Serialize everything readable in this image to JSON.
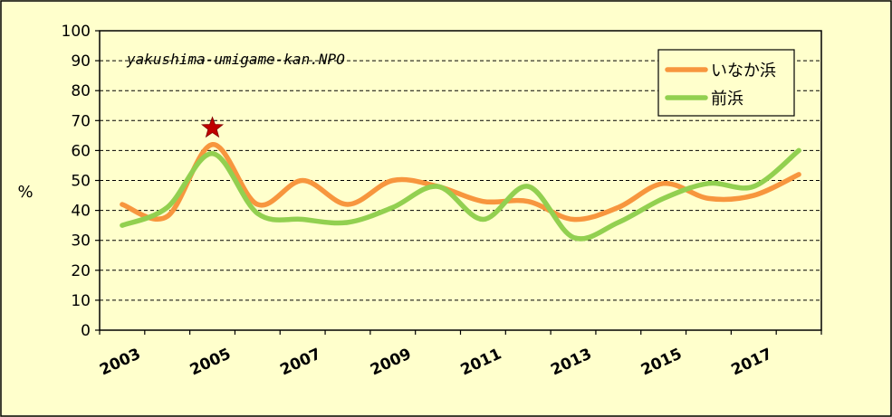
{
  "chart_data": {
    "type": "line",
    "ylabel": "%",
    "annotation": "yakushima-umigame-kan.NPO",
    "ylim": [
      0,
      100
    ],
    "yticks": [
      0,
      10,
      20,
      30,
      40,
      50,
      60,
      70,
      80,
      90,
      100
    ],
    "xlim": [
      2003,
      2018
    ],
    "xticks": [
      2003,
      2005,
      2007,
      2009,
      2011,
      2013,
      2015,
      2017
    ],
    "grid": "horizontal dashed",
    "legend_position": "top-right",
    "highlight": {
      "marker": "star",
      "x": 2005,
      "y": 67.5,
      "color": "#c00000"
    },
    "series": [
      {
        "name": "いなか浜",
        "color": "#f7963e",
        "x": [
          2003,
          2004,
          2005,
          2006,
          2007,
          2008,
          2009,
          2010,
          2011,
          2012,
          2013,
          2014,
          2015,
          2016,
          2017,
          2018
        ],
        "values": [
          42,
          38,
          62,
          42,
          50,
          42,
          50,
          48,
          43,
          43,
          37,
          41,
          49,
          44,
          45,
          52
        ]
      },
      {
        "name": "前浜",
        "color": "#92d050",
        "x": [
          2003,
          2004,
          2005,
          2006,
          2007,
          2008,
          2009,
          2010,
          2011,
          2012,
          2013,
          2014,
          2015,
          2016,
          2017,
          2018
        ],
        "values": [
          35,
          41,
          59,
          39,
          37,
          36,
          41,
          48,
          37,
          48,
          31,
          36,
          44,
          49,
          48,
          60
        ]
      }
    ]
  }
}
